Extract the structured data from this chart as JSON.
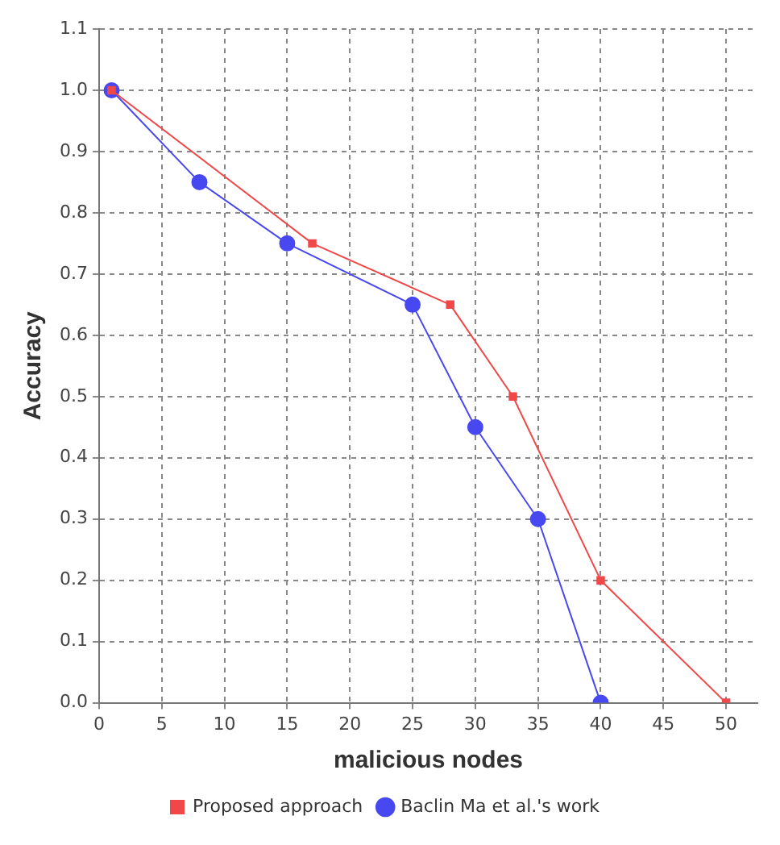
{
  "chart_data": {
    "type": "line",
    "xlabel": "malicious nodes",
    "ylabel": "Accuracy",
    "xlim": [
      0,
      52.5
    ],
    "xticks": [
      0,
      5,
      10,
      15,
      20,
      25,
      30,
      35,
      40,
      45,
      50
    ],
    "ylim": [
      0,
      1.1
    ],
    "yticks": [
      {
        "value": 0,
        "label": "0.0"
      },
      {
        "value": 0.1,
        "label": "0.1"
      },
      {
        "value": 0.2,
        "label": "0.2"
      },
      {
        "value": 0.3,
        "label": "0.3"
      },
      {
        "value": 0.4,
        "label": "0.4"
      },
      {
        "value": 0.5,
        "label": "0.5"
      },
      {
        "value": 0.6,
        "label": "0.6"
      },
      {
        "value": 0.7,
        "label": "0.7"
      },
      {
        "value": 0.8,
        "label": "0.8"
      },
      {
        "value": 0.9,
        "label": "0.9"
      },
      {
        "value": 1,
        "label": "1.0"
      },
      {
        "value": 1.1,
        "label": "1.1"
      }
    ],
    "grid": true,
    "legend": "bottom",
    "line_style": "solid",
    "series": [
      {
        "name": "Proposed approach",
        "color": "#f04848",
        "marker": "square",
        "x": [
          1,
          17,
          28,
          33,
          40,
          50
        ],
        "values": [
          1.0,
          0.75,
          0.65,
          0.5,
          0.2,
          0.0
        ]
      },
      {
        "name": "Baclin Ma et al.'s work",
        "color": "#4848f0",
        "marker": "circle",
        "x": [
          1,
          8,
          15,
          25,
          30,
          35,
          40
        ],
        "values": [
          1.0,
          0.85,
          0.75,
          0.65,
          0.45,
          0.3,
          0.0
        ]
      }
    ]
  }
}
